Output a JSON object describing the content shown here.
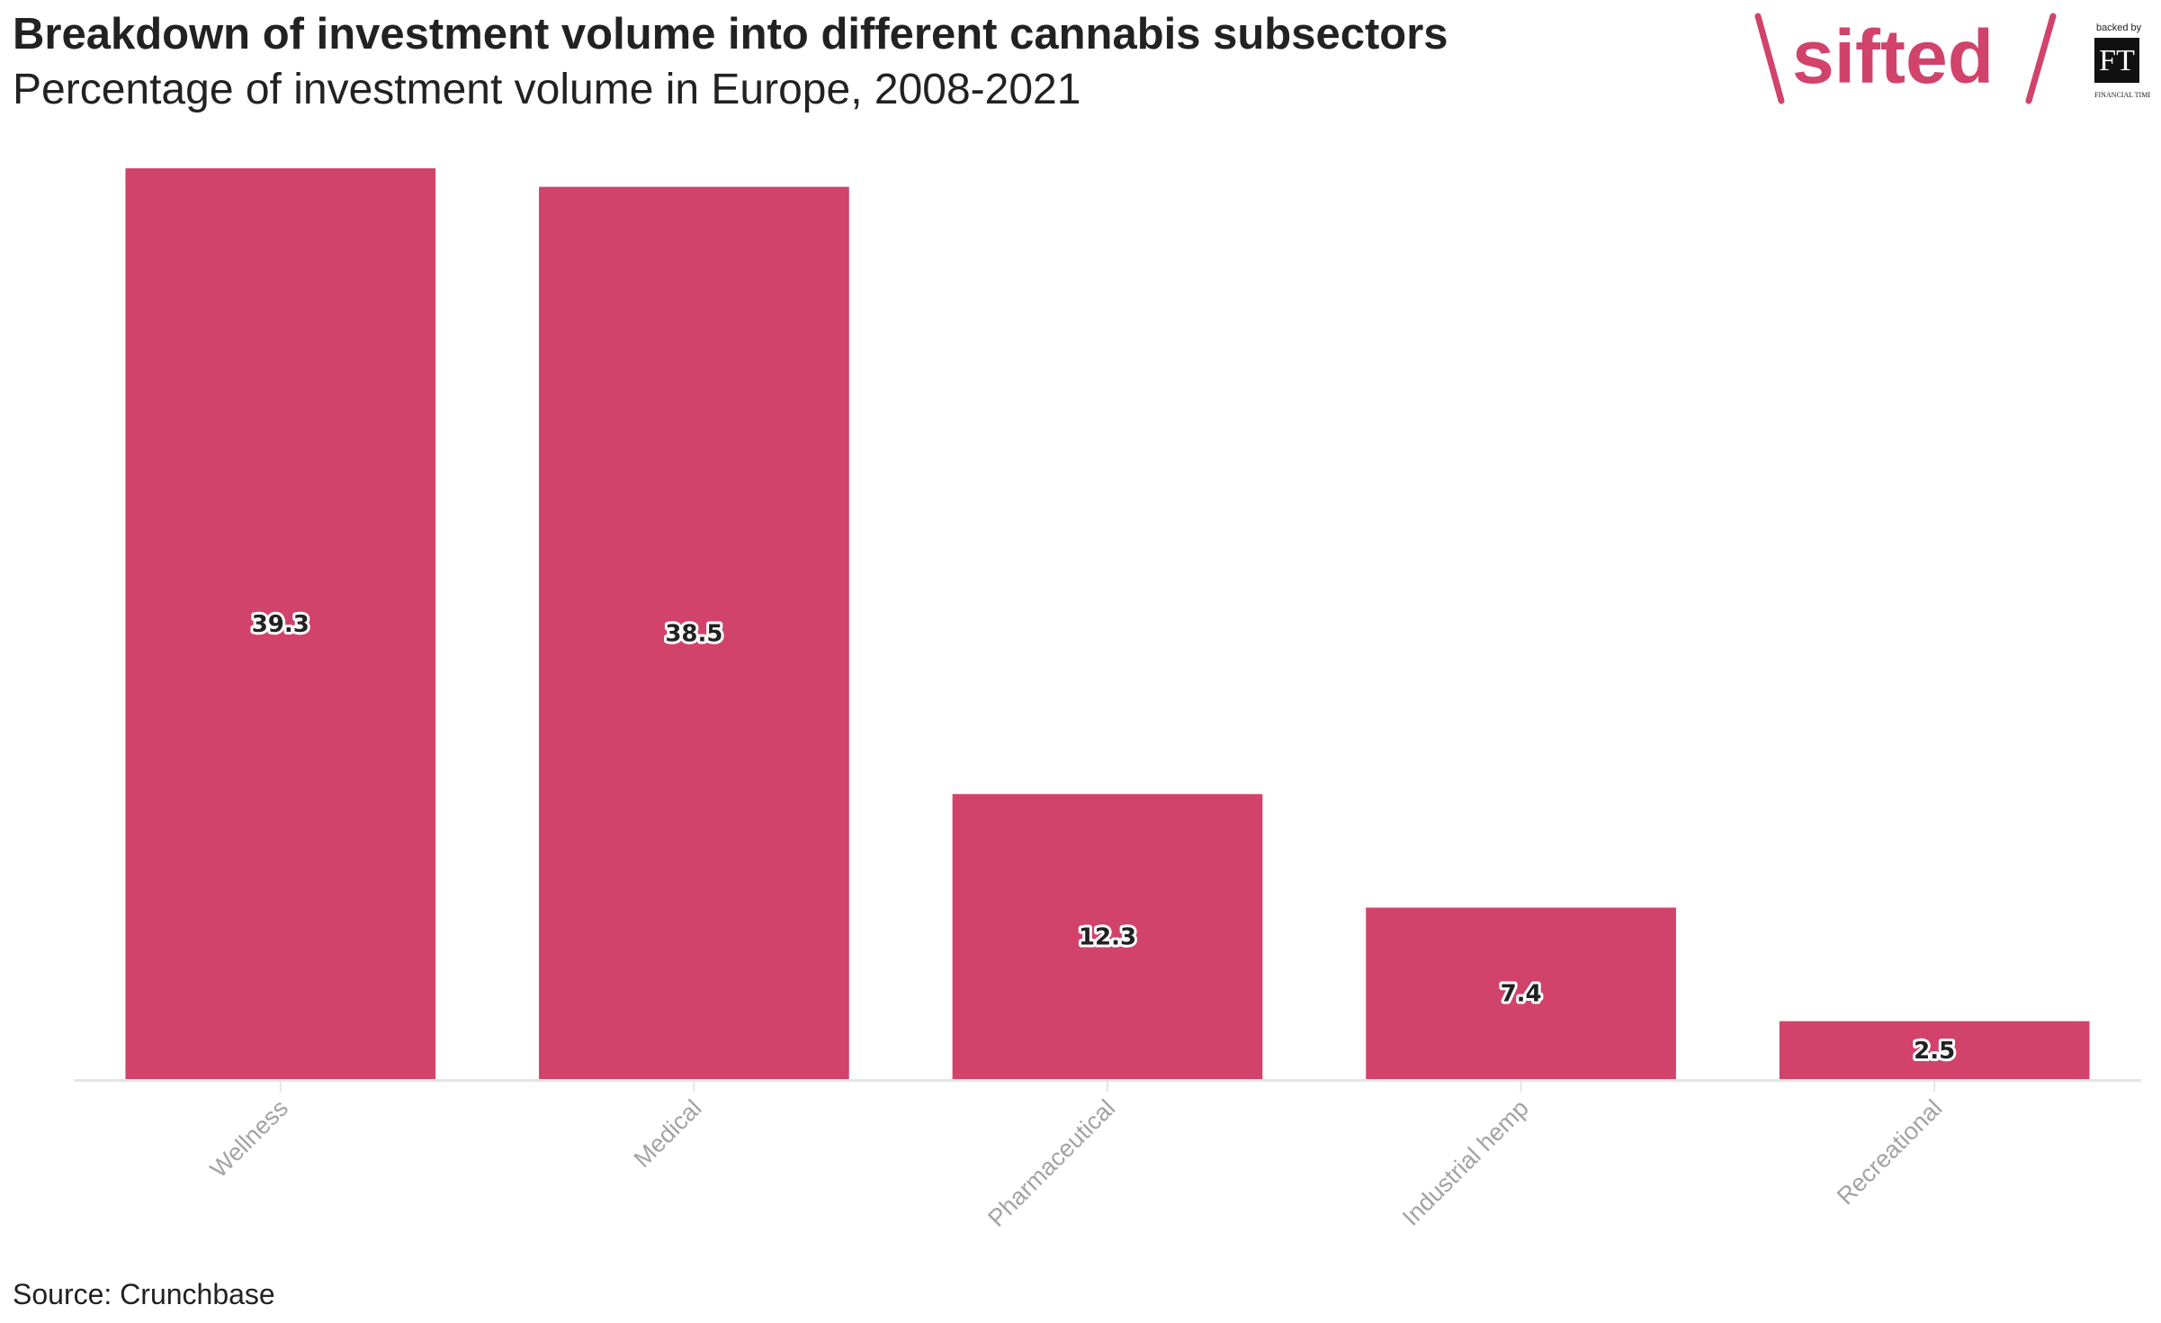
{
  "header": {
    "title": "Breakdown of investment volume into different cannabis subsectors",
    "subtitle": "Percentage of investment volume in Europe, 2008-2021"
  },
  "footer": {
    "source": "Source: Crunchbase"
  },
  "branding": {
    "logo_text": "sifted",
    "backed_by": "backed by",
    "ft_mark": "FT",
    "ft_name": "FINANCIAL TIMES",
    "brand_color": "#d1436b"
  },
  "chart_data": {
    "type": "bar",
    "categories": [
      "Wellness",
      "Medical",
      "Pharmaceutical",
      "Industrial hemp",
      "Recreational"
    ],
    "values": [
      39.3,
      38.5,
      12.3,
      7.4,
      2.5
    ],
    "value_labels": [
      "39.3",
      "38.5",
      "12.3",
      "7.4",
      "2.5"
    ],
    "title": "Breakdown of investment volume into different cannabis subsectors",
    "subtitle": "Percentage of investment volume in Europe, 2008-2021",
    "xlabel": "",
    "ylabel": "",
    "ylim": [
      0,
      39.3
    ],
    "grid": false,
    "legend": "none",
    "bar_color": "#d1436b"
  }
}
